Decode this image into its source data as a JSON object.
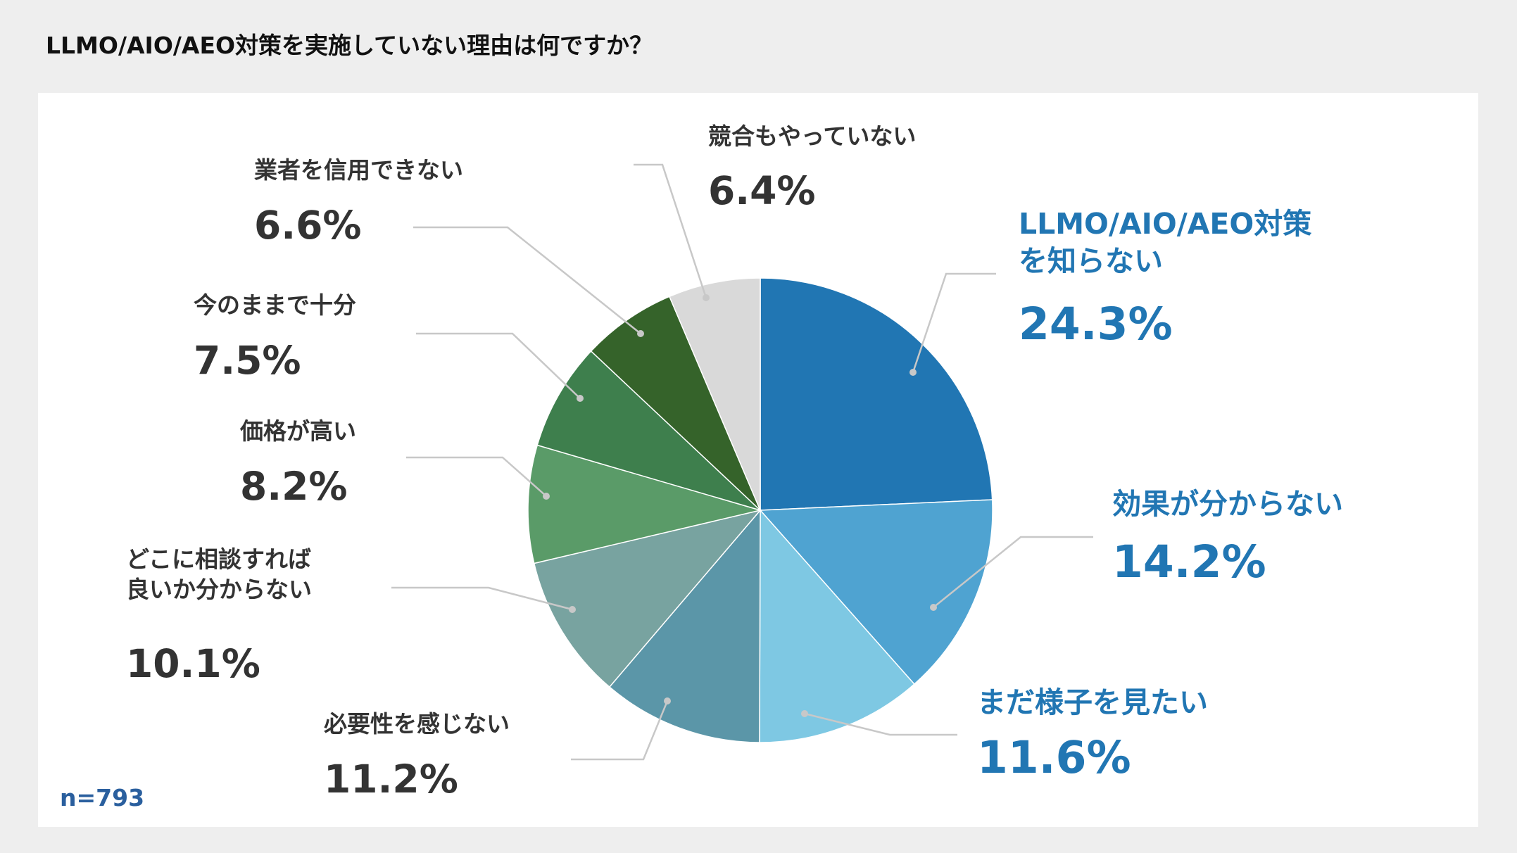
{
  "chart_data": {
    "type": "pie",
    "title": "LLMO/AIO/AEO対策を実施していない理由は何ですか？",
    "note": "n=793",
    "categories": [
      "LLMO/AIO/AEO対策を知らない",
      "効果が分からない",
      "まだ様子を見たい",
      "必要性を感じない",
      "どこに相談すれば良いか分からない",
      "価格が高い",
      "今のままで十分",
      "業者を信用できない",
      "競合もやっていない"
    ],
    "values": [
      24.3,
      14.2,
      11.6,
      11.2,
      10.1,
      8.2,
      7.5,
      6.6,
      6.4
    ],
    "value_labels": [
      "24.3%",
      "14.2%",
      "11.6%",
      "11.2%",
      "10.1%",
      "8.2%",
      "7.5%",
      "6.6%",
      "6.4%"
    ],
    "colors": [
      "#2176b3",
      "#4fa3d1",
      "#7ec8e3",
      "#5b96a8",
      "#78a3a0",
      "#5a9b68",
      "#3e7f4d",
      "#35632a",
      "#d9d9d9"
    ]
  }
}
